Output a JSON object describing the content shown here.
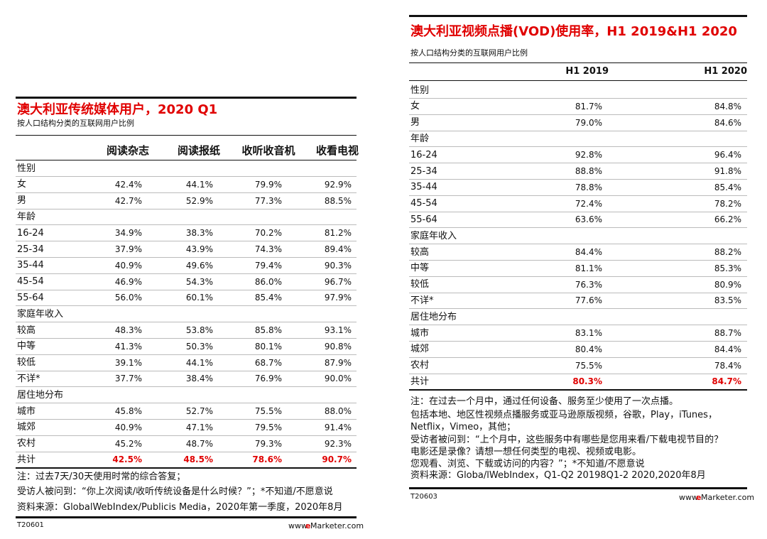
{
  "left": {
    "title": "澳大利亚传统媒体用户，2020 Q1",
    "subtitle": "按人口结构分类的互联网用户比例",
    "columns": [
      "阅读杂志",
      "阅读报纸",
      "收听收音机",
      "收看电视"
    ],
    "sections": [
      {
        "heading": "性别",
        "rows": [
          {
            "label": "女",
            "values": [
              "42.4%",
              "44.1%",
              "79.9%",
              "92.9%"
            ]
          },
          {
            "label": "男",
            "values": [
              "42.7%",
              "52.9%",
              "77.3%",
              "88.5%"
            ]
          }
        ]
      },
      {
        "heading": "年龄",
        "rows": [
          {
            "label": "16-24",
            "values": [
              "34.9%",
              "38.3%",
              "70.2%",
              "81.2%"
            ]
          },
          {
            "label": "25-34",
            "values": [
              "37.9%",
              "43.9%",
              "74.3%",
              "89.4%"
            ]
          },
          {
            "label": "35-44",
            "values": [
              "40.9%",
              "49.6%",
              "79.4%",
              "90.3%"
            ]
          },
          {
            "label": "45-54",
            "values": [
              "46.9%",
              "54.3%",
              "86.0%",
              "96.7%"
            ]
          },
          {
            "label": "55-64",
            "values": [
              "56.0%",
              "60.1%",
              "85.4%",
              "97.9%"
            ]
          }
        ]
      },
      {
        "heading": "家庭年收入",
        "rows": [
          {
            "label": "较高",
            "values": [
              "48.3%",
              "53.8%",
              "85.8%",
              "93.1%"
            ]
          },
          {
            "label": "中等",
            "values": [
              "41.3%",
              "50.3%",
              "80.1%",
              "90.8%"
            ]
          },
          {
            "label": "较低",
            "values": [
              "39.1%",
              "44.1%",
              "68.7%",
              "87.9%"
            ]
          },
          {
            "label": "不详*",
            "values": [
              "37.7%",
              "38.4%",
              "76.9%",
              "90.0%"
            ]
          }
        ]
      },
      {
        "heading": "居住地分布",
        "rows": [
          {
            "label": "城市",
            "values": [
              "45.8%",
              "52.7%",
              "75.5%",
              "88.0%"
            ]
          },
          {
            "label": "城郊",
            "values": [
              "40.9%",
              "47.1%",
              "79.5%",
              "91.4%"
            ]
          },
          {
            "label": "农村",
            "values": [
              "45.2%",
              "48.7%",
              "79.3%",
              "92.3%"
            ]
          }
        ]
      }
    ],
    "total": {
      "label": "共计",
      "values": [
        "42.5%",
        "48.5%",
        "78.6%",
        "90.7%"
      ]
    },
    "notes": [
      "注：过去7天/30天使用时常的综合答复；",
      "受访人被问到：“你上次阅读/收听传统设备是什么时候？”；*不知道/不愿意说",
      "资料来源：GlobalWebIndex/Publicis Media，2020年第一季度，2020年8月"
    ],
    "footer": {
      "id": "T20601",
      "brand": [
        "www.",
        "e",
        "Marketer.com"
      ]
    }
  },
  "right": {
    "title": "澳大利亚视频点播(VOD)使用率，H1 2019&H1 2020",
    "subtitle": "按人口结构分类的互联网用户比例",
    "columns": [
      "H1 2019",
      "H1 2020"
    ],
    "sections": [
      {
        "heading": "性别",
        "rows": [
          {
            "label": "女",
            "values": [
              "81.7%",
              "84.8%"
            ]
          },
          {
            "label": "男",
            "values": [
              "79.0%",
              "84.6%"
            ]
          }
        ]
      },
      {
        "heading": "年龄",
        "rows": [
          {
            "label": "16-24",
            "values": [
              "92.8%",
              "96.4%"
            ]
          },
          {
            "label": "25-34",
            "values": [
              "88.8%",
              "91.8%"
            ]
          },
          {
            "label": "35-44",
            "values": [
              "78.8%",
              "85.4%"
            ]
          },
          {
            "label": "45-54",
            "values": [
              "72.4%",
              "78.2%"
            ]
          },
          {
            "label": "55-64",
            "values": [
              "63.6%",
              "66.2%"
            ]
          }
        ]
      },
      {
        "heading": "家庭年收入",
        "rows": [
          {
            "label": "较高",
            "values": [
              "84.4%",
              "88.2%"
            ]
          },
          {
            "label": "中等",
            "values": [
              "81.1%",
              "85.3%"
            ]
          },
          {
            "label": "较低",
            "values": [
              "76.3%",
              "80.9%"
            ]
          },
          {
            "label": "不详*",
            "values": [
              "77.6%",
              "83.5%"
            ]
          }
        ]
      },
      {
        "heading": "居住地分布",
        "rows": [
          {
            "label": "城市",
            "values": [
              "83.1%",
              "88.7%"
            ]
          },
          {
            "label": "城郊",
            "values": [
              "80.4%",
              "84.4%"
            ]
          },
          {
            "label": "农村",
            "values": [
              "75.5%",
              "78.4%"
            ]
          }
        ]
      }
    ],
    "total": {
      "label": "共计",
      "values": [
        "80.3%",
        "84.7%"
      ]
    },
    "notes": [
      "注：在过去一个月中，通过任何设备、服务至少使用了一次点播。",
      "包括本地、地区性视频点播服务或亚马逊原版视频，谷歌，Play，iTunes，",
      "Netflix，Vimeo，其他；",
      "受访者被问到：“上个月中，这些服务中有哪些是您用来看/下载电视节目的？",
      "电影还是录像？请想一想任何类型的电视、视频或电影。",
      "您观看、浏览、下载或访问的内容？”；*不知道/不愿意说",
      "资料来源：Globa/lWebIndex，Q1-Q2 20198Q1-2 2020,2020年8月"
    ],
    "footer": {
      "id": "T20603",
      "brand": [
        "www.",
        "e",
        "Marketer.com"
      ]
    }
  }
}
